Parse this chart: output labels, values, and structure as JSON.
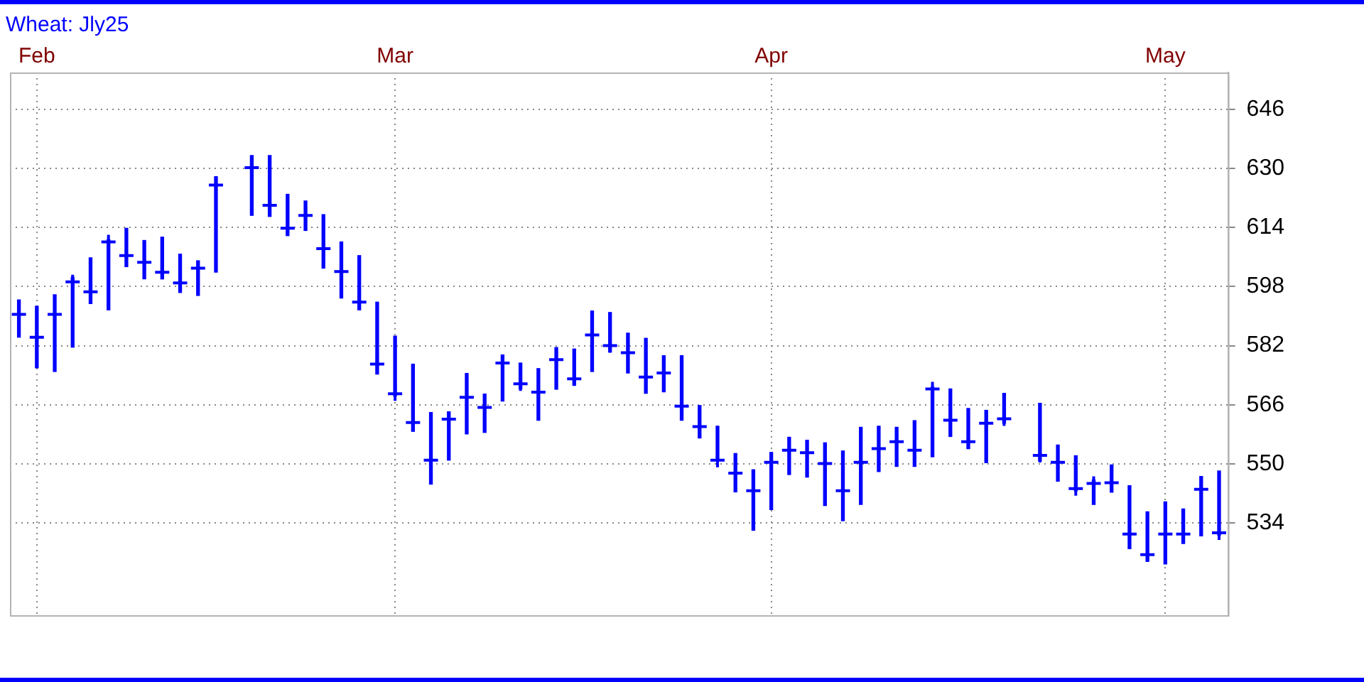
{
  "chart_data": {
    "type": "bar",
    "title": "Wheat: Jly25",
    "categories": [
      null,
      "Feb",
      null,
      null,
      null,
      null,
      null,
      null,
      null,
      null,
      null,
      null,
      null,
      null,
      null,
      null,
      null,
      null,
      null,
      null,
      null,
      "Mar",
      null,
      null,
      null,
      null,
      null,
      null,
      null,
      null,
      null,
      null,
      null,
      null,
      null,
      null,
      null,
      null,
      null,
      null,
      null,
      null,
      "Apr",
      null,
      null,
      null,
      null,
      null,
      null,
      null,
      null,
      null,
      null,
      null,
      null,
      null,
      null,
      null,
      null,
      null,
      null,
      null,
      null,
      null,
      "May",
      null,
      null,
      null
    ],
    "series": [
      {
        "color": "#0000ff",
        "base": [
          584.3,
          576.0,
          575.0,
          581.6,
          593.4,
          591.7,
          603.4,
          600.1,
          600.1,
          596.4,
          595.6,
          601.9,
          null,
          617.3,
          617.0,
          611.8,
          613.2,
          603.0,
          594.9,
          591.7,
          574.3,
          568.4,
          558.8,
          544.5,
          551.0,
          558.1,
          558.5,
          567.0,
          570.3,
          561.8,
          570.2,
          571.3,
          575.0,
          580.3,
          574.6,
          569.1,
          569.5,
          561.8,
          557.0,
          551.0,
          542.4,
          532.0,
          537.6,
          547.1,
          546.4,
          538.7,
          534.6,
          539.0,
          547.9,
          549.3,
          549.3,
          551.9,
          557.4,
          554.1,
          550.3,
          561.0,
          null,
          550.8,
          545.3,
          542.7,
          539.0,
          542.3,
          527.0,
          523.6,
          522.9,
          528.4,
          530.5,
          530.7
        ],
        "values": [
          10.1,
          16.7,
          20.8,
          18.9,
          12.4,
          19.0,
          10.4,
          10.4,
          11.3,
          10.4,
          9.4,
          25.9,
          null,
          16.2,
          16.5,
          11.2,
          8.0,
          14.5,
          15.2,
          14.7,
          19.5,
          16.2,
          18.2,
          19.4,
          13.1,
          16.4,
          10.4,
          12.5,
          7.0,
          14.0,
          11.3,
          9.8,
          16.4,
          10.7,
          10.8,
          14.9,
          9.8,
          17.5,
          8.8,
          9.2,
          10.4,
          16.4,
          15.5,
          10.1,
          10.0,
          17.0,
          18.9,
          20.9,
          12.3,
          10.6,
          12.4,
          18.9,
          12.9,
          10.9,
          14.2,
          8.1,
          null,
          15.6,
          9.8,
          9.5,
          6.6,
          7.4,
          17.1,
          13.4,
          16.8,
          9.4,
          16.1,
          17.4
        ]
      },
      {
        "type": "scatter",
        "color": "#0000ff",
        "values": [
          590.5,
          584.3,
          590.5,
          599.3,
          596.6,
          610.1,
          606.4,
          604.6,
          601.9,
          599.0,
          603.0,
          625.5,
          null,
          630.2,
          620.0,
          613.8,
          617.3,
          608.3,
          602.1,
          593.8,
          577.0,
          569.0,
          561.2,
          551.0,
          562.1,
          568.0,
          565.3,
          577.3,
          571.7,
          569.4,
          578.2,
          573.0,
          584.9,
          582.0,
          580.1,
          573.5,
          574.6,
          565.6,
          560.1,
          551.0,
          547.5,
          542.7,
          550.4,
          553.7,
          553.0,
          550.1,
          542.7,
          550.4,
          554.1,
          556.0,
          553.7,
          570.3,
          561.8,
          556.0,
          561.0,
          562.2,
          null,
          552.3,
          550.4,
          543.3,
          544.7,
          544.9,
          531.0,
          525.4,
          531.0,
          531.0,
          543.1,
          531.3
        ]
      }
    ],
    "marker": "cross",
    "ylim": [
      509,
      656
    ],
    "yticks": [
      534,
      550,
      566,
      582,
      598,
      614,
      630,
      646
    ],
    "grid": true
  }
}
